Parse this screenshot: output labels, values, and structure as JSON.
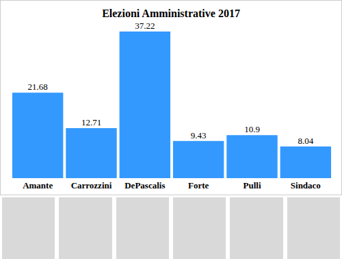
{
  "chart_data": {
    "type": "bar",
    "title": "Elezioni Amministrative 2017",
    "categories": [
      "Amante",
      "Carrozzini",
      "DePascalis",
      "Forte",
      "Pulli",
      "Sindaco"
    ],
    "values": [
      21.68,
      12.71,
      37.22,
      9.43,
      10.9,
      8.04
    ],
    "color": "#3399ff",
    "ylim": [
      0,
      40
    ],
    "yticks": [
      0,
      10,
      20,
      30,
      40
    ],
    "grid": false,
    "data_labels": true,
    "tick_labels": "x"
  }
}
